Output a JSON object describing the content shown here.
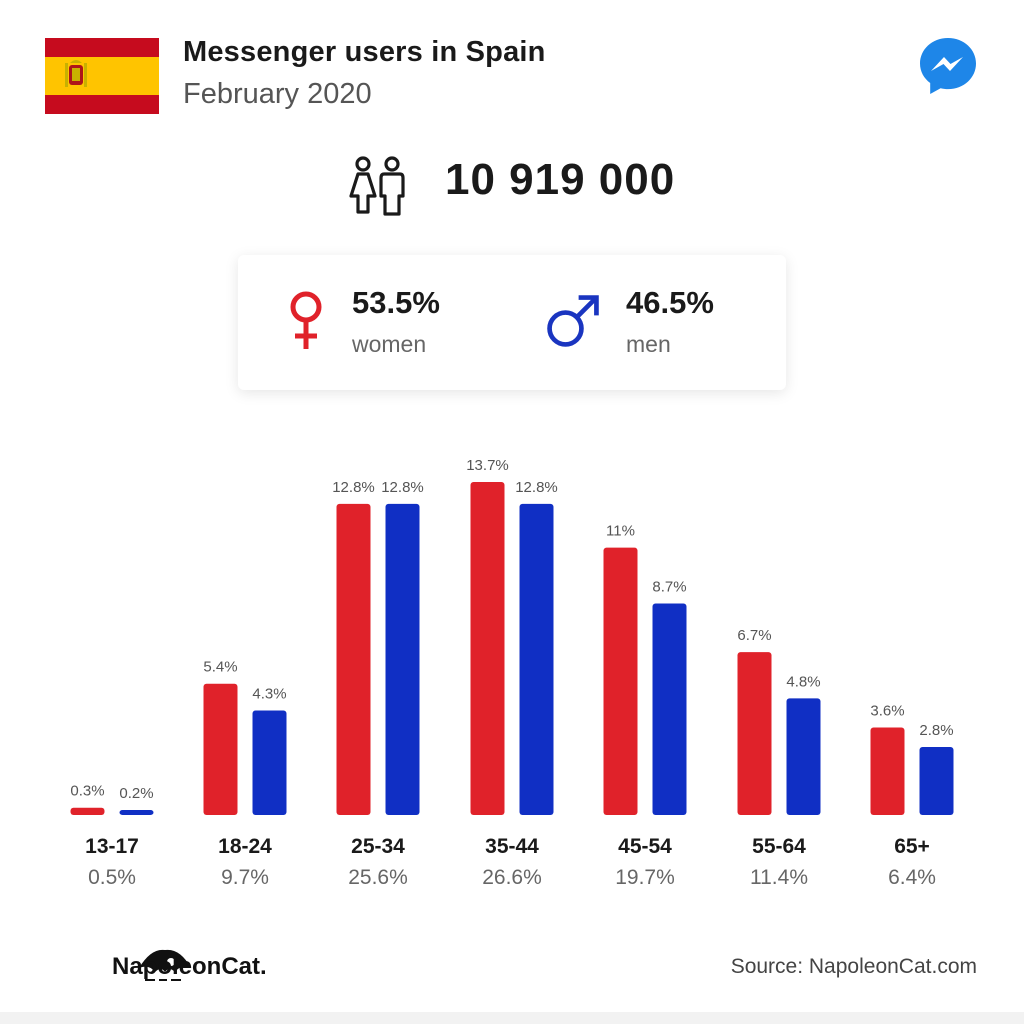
{
  "header": {
    "title": "Messenger users in Spain",
    "subtitle": "February 2020"
  },
  "total": {
    "value": "10 919 000",
    "icon": "people-icon"
  },
  "gender": {
    "women": {
      "percent": "53.5%",
      "label": "women",
      "color": "#e0222a",
      "icon": "female-symbol-icon"
    },
    "men": {
      "percent": "46.5%",
      "label": "men",
      "color": "#1a35c0",
      "icon": "male-symbol-icon"
    }
  },
  "footer": {
    "brand": "NapoleonCat.",
    "source": "Source: NapoleonCat.com"
  },
  "colors": {
    "women": "#e0222a",
    "men": "#102fc4",
    "messenger": "#1e86e8"
  },
  "chart_data": {
    "type": "bar",
    "categories": [
      "13-17",
      "18-24",
      "25-34",
      "35-44",
      "45-54",
      "55-64",
      "65+"
    ],
    "totals": [
      "0.5%",
      "9.7%",
      "25.6%",
      "26.6%",
      "19.7%",
      "11.4%",
      "6.4%"
    ],
    "series": [
      {
        "name": "women",
        "values": [
          0.3,
          5.4,
          12.8,
          13.7,
          11,
          6.7,
          3.6
        ],
        "labels": [
          "0.3%",
          "5.4%",
          "12.8%",
          "13.7%",
          "11%",
          "6.7%",
          "3.6%"
        ],
        "color": "#e0222a"
      },
      {
        "name": "men",
        "values": [
          0.2,
          4.3,
          12.8,
          12.8,
          8.7,
          4.8,
          2.8
        ],
        "labels": [
          "0.2%",
          "4.3%",
          "12.8%",
          "12.8%",
          "8.7%",
          "4.8%",
          "2.8%"
        ],
        "color": "#102fc4"
      }
    ],
    "ylim": [
      0,
      13.7
    ],
    "grid": false
  }
}
